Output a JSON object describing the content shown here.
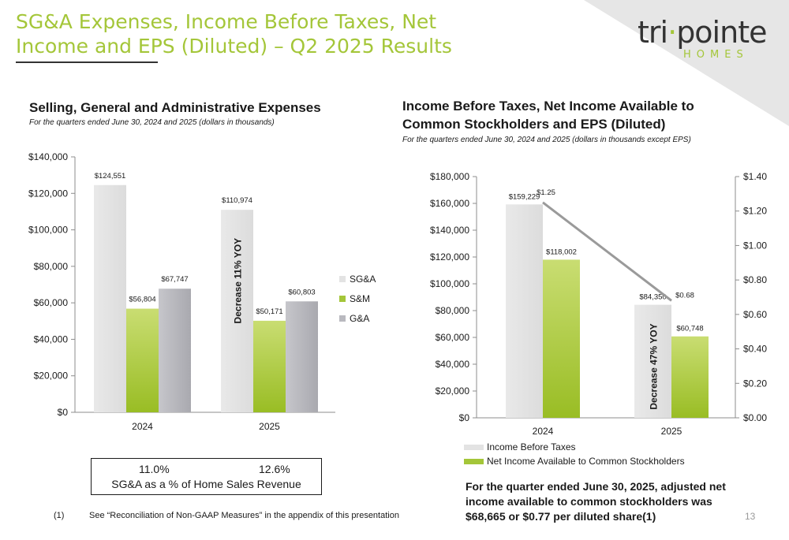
{
  "slide": {
    "title": "SG&A Expenses, Income Before Taxes, Net Income and EPS (Diluted) – Q2 2025 Results",
    "logo_main": "tri pointe",
    "logo_sub": "HOMES",
    "page_number": "13",
    "footnote_number": "(1)",
    "footnote_text": "See “Reconciliation of Non-GAAP Measures” in the appendix of this presentation"
  },
  "colors": {
    "accent": "#a4c639",
    "sga": "#e3e3e3",
    "ga": "#b9b9bf",
    "eps_line": "#9a9a9a"
  },
  "left_panel": {
    "title": "Selling, General and Administrative Expenses",
    "subtitle": "For the quarters ended June 30, 2024 and 2025 (dollars in thousands)",
    "ratio_2024": "11.0%",
    "ratio_2025": "12.6%",
    "ratio_label": "SG&A as a % of Home Sales Revenue"
  },
  "right_panel": {
    "title_line1": "Income Before Taxes, Net Income Available to",
    "title_line2": "Common Stockholders and EPS (Diluted)",
    "subtitle": "For the quarters ended June 30, 2024 and 2025 (dollars in thousands except EPS)",
    "callout": "For the quarter ended June 30, 2025, adjusted net income available to common stockholders was $68,665 or $0.77 per diluted share(1)"
  },
  "chart_data": [
    {
      "type": "bar",
      "categories": [
        "2024",
        "2025"
      ],
      "series": [
        {
          "name": "SG&A",
          "values": [
            124551,
            110974
          ],
          "labels": [
            "$124,551",
            "$110,974"
          ]
        },
        {
          "name": "S&M",
          "values": [
            56804,
            50171
          ],
          "labels": [
            "$56,804",
            "$50,171"
          ]
        },
        {
          "name": "G&A",
          "values": [
            67747,
            60803
          ],
          "labels": [
            "$67,747",
            "$60,803"
          ]
        }
      ],
      "ylim": [
        0,
        140000
      ],
      "y_ticks": [
        0,
        20000,
        40000,
        60000,
        80000,
        100000,
        120000,
        140000
      ],
      "y_tick_labels": [
        "$0",
        "$20,000",
        "$40,000",
        "$60,000",
        "$80,000",
        "$100,000",
        "$120,000",
        "$140,000"
      ],
      "annotation": "Decrease 11% YOY",
      "legend_position": "right",
      "grid": false
    },
    {
      "type": "bar",
      "categories": [
        "2024",
        "2025"
      ],
      "series": [
        {
          "name": "Income Before Taxes",
          "values": [
            159229,
            84350
          ],
          "labels": [
            "$159,229",
            "$84,350"
          ]
        },
        {
          "name": "Net Income Available to Common Stockholders",
          "values": [
            118002,
            60748
          ],
          "labels": [
            "$118,002",
            "$60,748"
          ]
        },
        {
          "type": "line",
          "axis": "secondary",
          "values": [
            1.25,
            0.68
          ],
          "labels": [
            "$1.25",
            "$0.68"
          ]
        }
      ],
      "ylim": [
        0,
        180000
      ],
      "y_ticks": [
        0,
        20000,
        40000,
        60000,
        80000,
        100000,
        120000,
        140000,
        160000,
        180000
      ],
      "y_tick_labels": [
        "$0",
        "$20,000",
        "$40,000",
        "$60,000",
        "$80,000",
        "$100,000",
        "$120,000",
        "$140,000",
        "$160,000",
        "$180,000"
      ],
      "y2lim": [
        0,
        1.4
      ],
      "y2_ticks": [
        0,
        0.2,
        0.4,
        0.6,
        0.8,
        1.0,
        1.2,
        1.4
      ],
      "y2_tick_labels": [
        "$0.00",
        "$0.20",
        "$0.40",
        "$0.60",
        "$0.80",
        "$1.00",
        "$1.20",
        "$1.40"
      ],
      "annotation": "Decrease 47% YOY",
      "legend_position": "bottom",
      "grid": false
    }
  ]
}
